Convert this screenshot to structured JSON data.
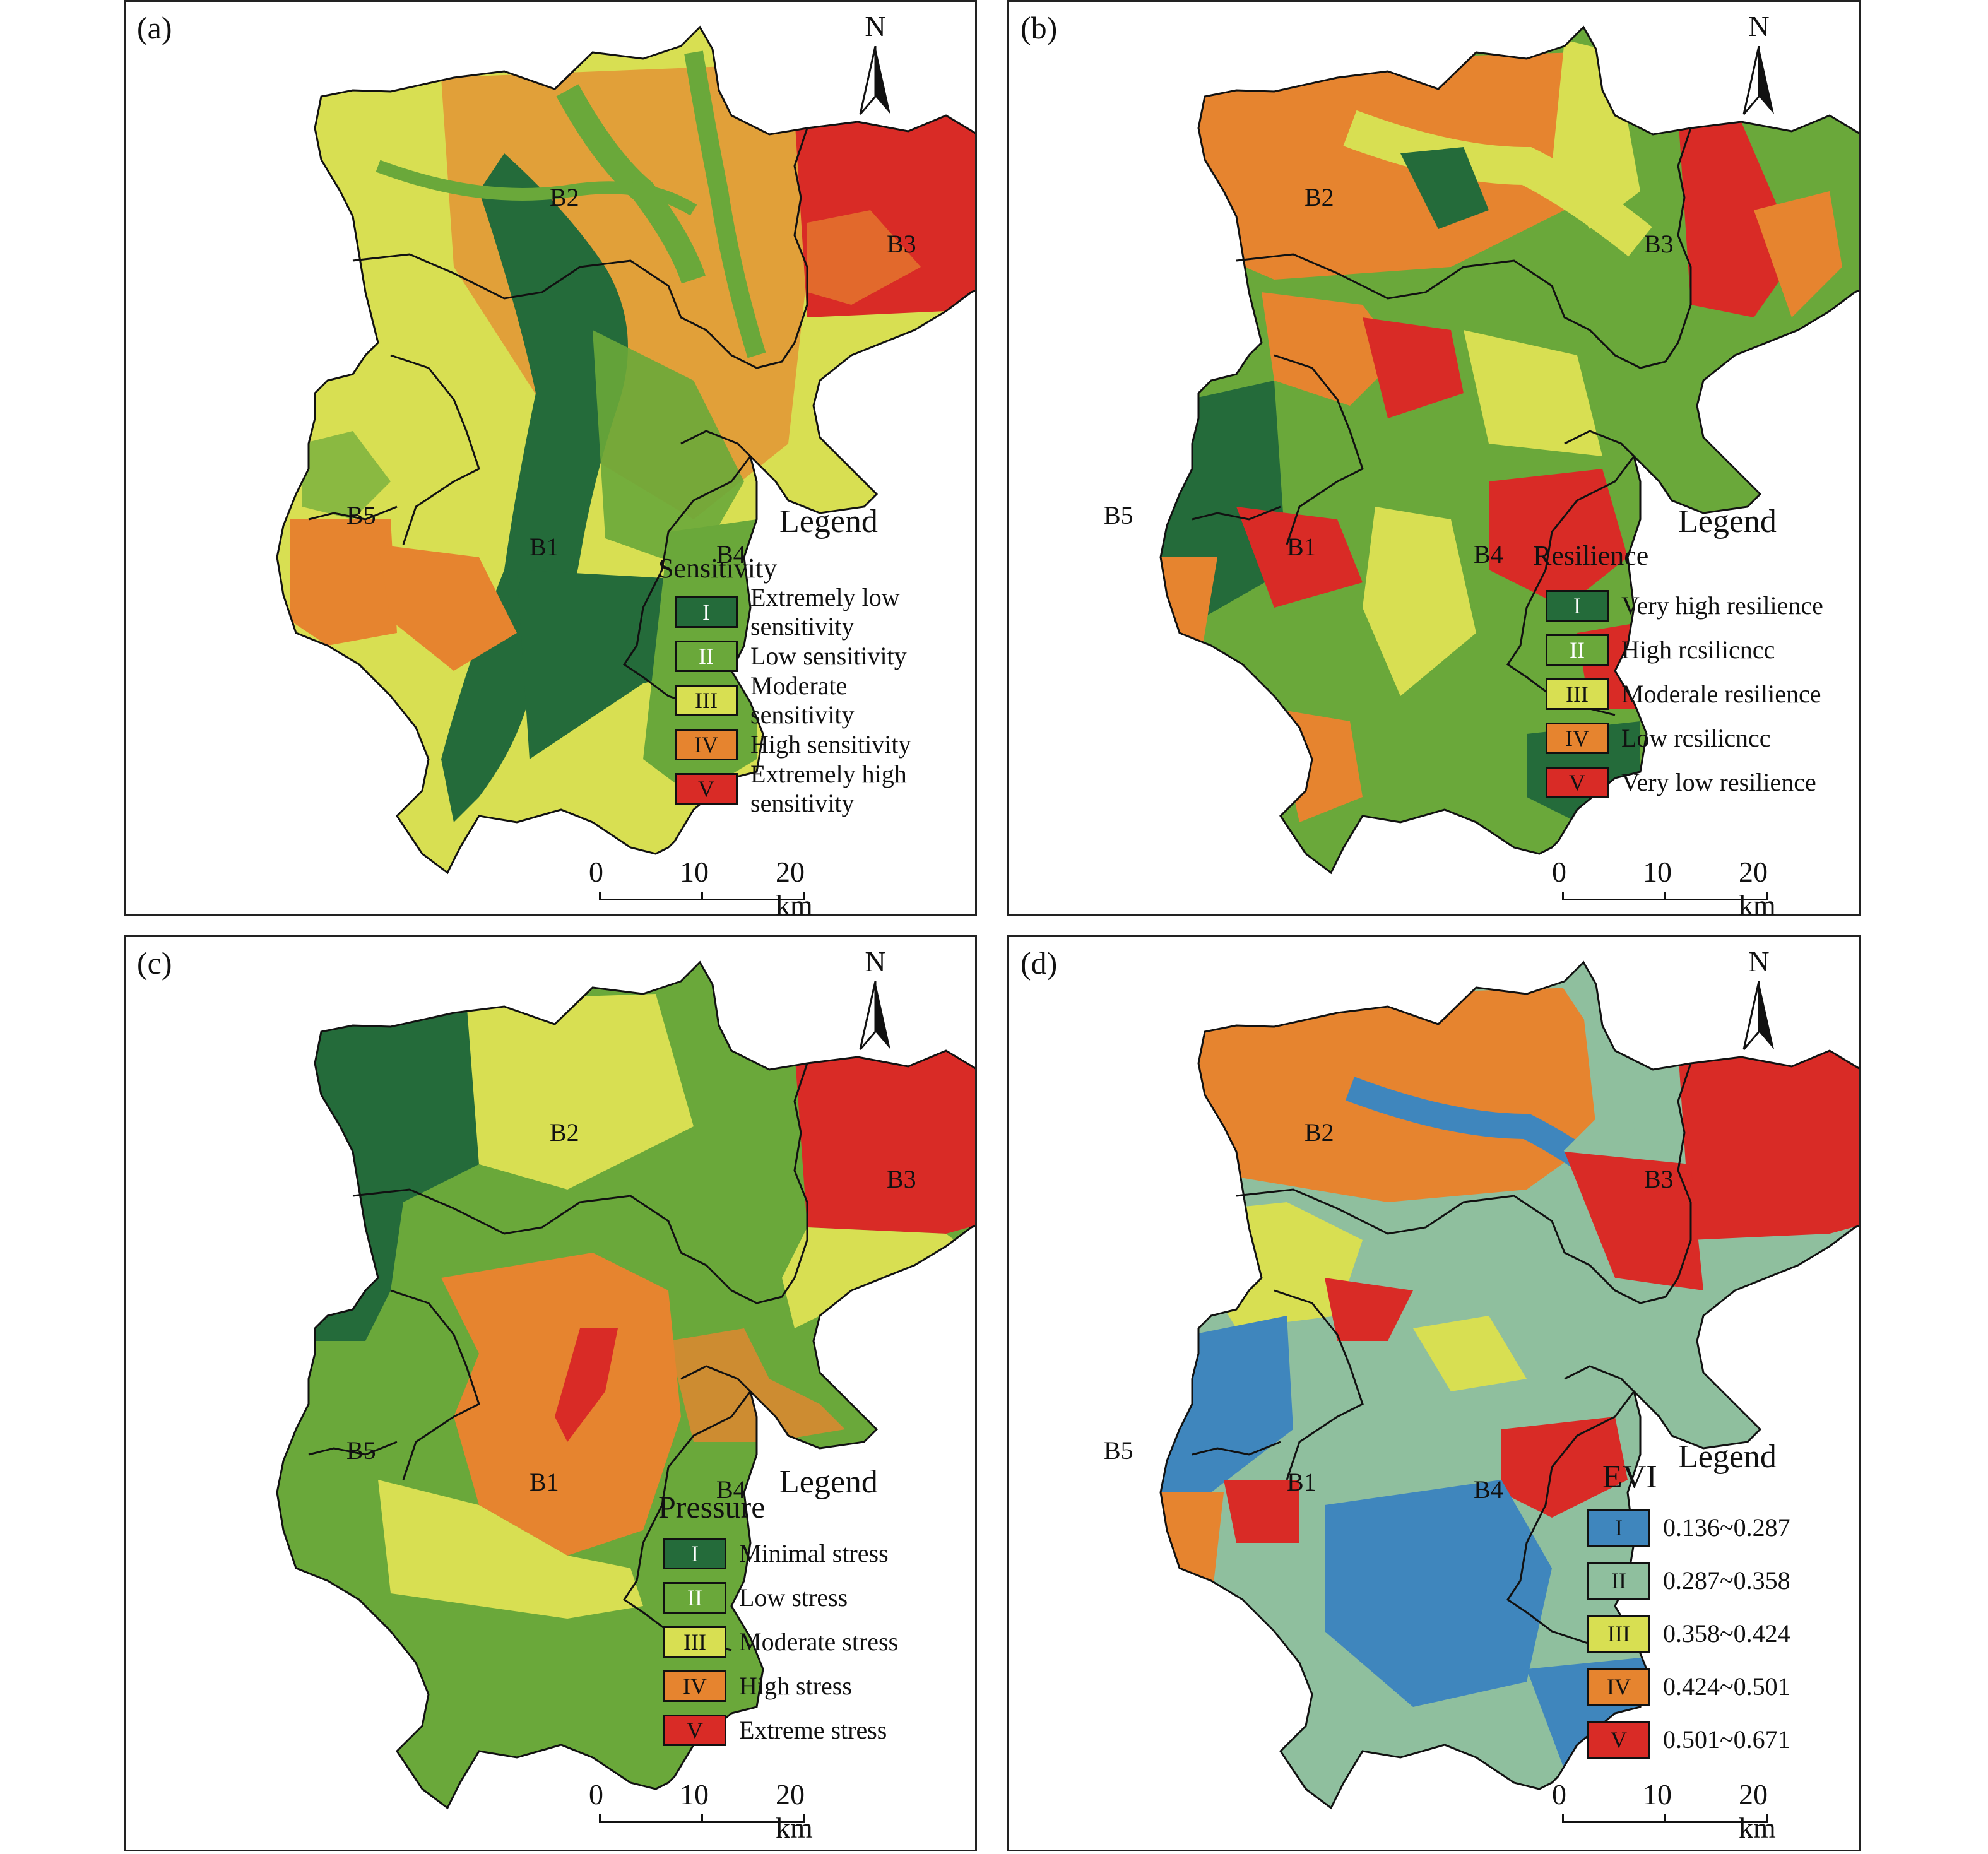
{
  "panels": [
    {
      "id": "pa",
      "tag": "(a)",
      "north": "N",
      "legend_title": "Legend",
      "category_title": "Sensitivity",
      "classes": [
        "I",
        "II",
        "III",
        "IV",
        "V"
      ],
      "class_labels": [
        "Extremely low sensitivity",
        "Low sensitivity",
        "Moderate sensitivity",
        "High sensitivity",
        "Extremely high sensitivity"
      ],
      "colors": [
        "#246b3a",
        "#6aa83a",
        "#d8df52",
        "#e6842f",
        "#d92b26"
      ],
      "scale": {
        "t0": "0",
        "t1": "10",
        "t2": "20 km"
      },
      "basins": [
        "B2",
        "B3",
        "B5",
        "B1",
        "B4"
      ]
    },
    {
      "id": "pb",
      "tag": "(b)",
      "north": "N",
      "legend_title": "Legend",
      "category_title": "Resilience",
      "classes": [
        "I",
        "II",
        "III",
        "IV",
        "V"
      ],
      "class_labels": [
        "Very high resilience",
        "High rcsilicncc",
        "Moderale resilience",
        "Low rcsilicncc",
        "Very low resilience"
      ],
      "colors": [
        "#246b3a",
        "#6aa83a",
        "#d8df52",
        "#e6842f",
        "#d92b26"
      ],
      "scale": {
        "t0": "0",
        "t1": "10",
        "t2": "20 km"
      },
      "basins": [
        "B2",
        "B3",
        "B5",
        "B1",
        "B4"
      ]
    },
    {
      "id": "pc",
      "tag": "(c)",
      "north": "N",
      "legend_title": "Legend",
      "category_title": "Pressure",
      "classes": [
        "I",
        "II",
        "III",
        "IV",
        "V"
      ],
      "class_labels": [
        "Minimal stress",
        "Low stress",
        "Moderate stress",
        "High stress",
        "Extreme stress"
      ],
      "colors": [
        "#246b3a",
        "#6aa83a",
        "#d8df52",
        "#e6842f",
        "#d92b26"
      ],
      "scale": {
        "t0": "0",
        "t1": "10",
        "t2": "20 km"
      },
      "basins": [
        "B2",
        "B3",
        "B5",
        "B1",
        "B4"
      ]
    },
    {
      "id": "pd",
      "tag": "(d)",
      "north": "N",
      "legend_title": "Legend",
      "category_title": "EVI",
      "classes": [
        "I",
        "II",
        "III",
        "IV",
        "V"
      ],
      "class_labels": [
        "0.136~0.287",
        "0.287~0.358",
        "0.358~0.424",
        "0.424~0.501",
        "0.501~0.671"
      ],
      "colors": [
        "#3f86bd",
        "#8fbf9e",
        "#d8df52",
        "#e6842f",
        "#d92b26"
      ],
      "scale": {
        "t0": "0",
        "t1": "10",
        "t2": "20 km"
      },
      "basins": [
        "B2",
        "B3",
        "B5",
        "B1",
        "B4"
      ]
    }
  ]
}
